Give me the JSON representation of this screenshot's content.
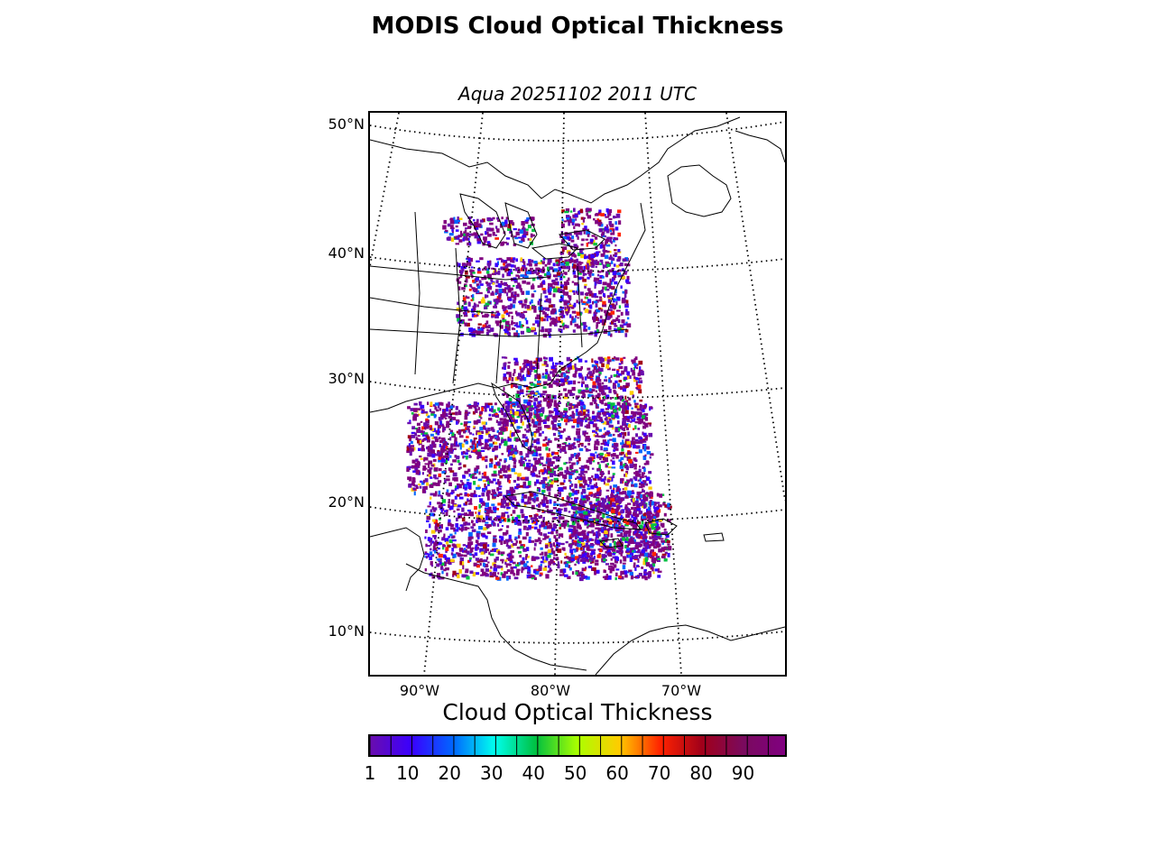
{
  "title": "MODIS Cloud Optical Thickness",
  "subtitle": "Aqua 20251102 2011 UTC",
  "map": {
    "lat_labels": [
      "50°N",
      "40°N",
      "30°N",
      "20°N",
      "10°N"
    ],
    "lon_labels": [
      "90°W",
      "80°W",
      "70°W"
    ],
    "lat_range": [
      6.5,
      51
    ],
    "lon_range": [
      -94,
      -62
    ]
  },
  "colorbar": {
    "title": "Cloud Optical Thickness",
    "tick_labels": [
      "1",
      "10",
      "20",
      "30",
      "40",
      "50",
      "60",
      "70",
      "80",
      "90"
    ],
    "range": [
      1,
      100
    ],
    "colormap": [
      "#6a0dad",
      "#3a00ff",
      "#0066ff",
      "#00ffee",
      "#00c040",
      "#aaff00",
      "#ffcc00",
      "#ff2200",
      "#a0001a",
      "#7a0a5e",
      "#800080"
    ]
  }
}
